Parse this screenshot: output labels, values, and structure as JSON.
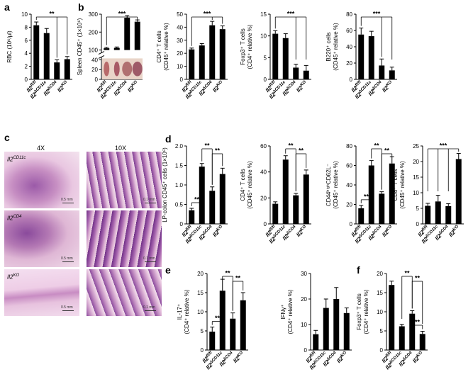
{
  "panel_labels": {
    "a": "a",
    "b": "b",
    "c": "c",
    "d": "d",
    "e": "e",
    "f": "f"
  },
  "histology": {
    "col_headers": [
      "4X",
      "10X"
    ],
    "rows": [
      {
        "label_base": "Il2",
        "label_sup": "CD11c",
        "scale_4x": "0.5 mm",
        "scale_10x": "0.1 mm"
      },
      {
        "label_base": "Il2",
        "label_sup": "CD4",
        "scale_4x": "0.5 mm",
        "scale_10x": "0.1 mm"
      },
      {
        "label_base": "Il2",
        "label_sup": "KO",
        "scale_4x": "0.5 mm",
        "scale_10x": "0.1 mm"
      }
    ],
    "colors": {
      "stain_pink": "#e8b8d6",
      "stain_purple": "#9a5aa6",
      "tissue_dark": "#6b2f7e"
    }
  },
  "spleen_photo": {
    "colors": [
      "#b86a6a",
      "#a85a66",
      "#b07070",
      "#9e5a68"
    ]
  },
  "chart_data": [
    {
      "id": "a",
      "type": "bar",
      "categories": [
        "Il2fl/fl",
        "Il2ΔCD11c",
        "Il2ΔCD4",
        "Il2KO"
      ],
      "cat_base": [
        "Il2",
        "Il2",
        "Il2",
        "Il2"
      ],
      "cat_sup": [
        "fl/fl",
        "ΔCD11c",
        "ΔCD4",
        "KO"
      ],
      "values": [
        8.3,
        7.1,
        2.6,
        3.1
      ],
      "errors": [
        0.5,
        0.7,
        0.4,
        0.4
      ],
      "ylabel": "RBC (10⁶/μl)",
      "ylim": [
        0,
        10
      ],
      "yticks": [
        "0",
        "2",
        "4",
        "6",
        "8",
        "10"
      ],
      "sig": [
        {
          "from": 0,
          "to": [
            2,
            3
          ],
          "label": "**"
        }
      ]
    },
    {
      "id": "b1",
      "type": "bar",
      "broken_axis": true,
      "categories": [
        "Il2fl/fl",
        "Il2ΔCD11c",
        "Il2ΔCD4",
        "Il2KO"
      ],
      "cat_base": [
        "Il2",
        "Il2",
        "Il2",
        "Il2"
      ],
      "cat_sup": [
        "fl/fl",
        "ΔCD11c",
        "ΔCD4",
        "KO"
      ],
      "values": [
        110,
        112,
        280,
        258
      ],
      "errors": [
        5,
        5,
        12,
        10
      ],
      "ylabel": "Spleen CD45⁺ (1×10⁶)",
      "yticks": [
        "0",
        "20",
        "40",
        "100",
        "200",
        "300"
      ],
      "sig": [
        {
          "from": 0,
          "to": [
            2,
            3
          ],
          "label": "***"
        }
      ]
    },
    {
      "id": "b2",
      "type": "bar",
      "categories": [
        "Il2fl/fl",
        "Il2ΔCD11c",
        "Il2ΔCD4",
        "Il2KO"
      ],
      "cat_base": [
        "Il2",
        "Il2",
        "Il2",
        "Il2"
      ],
      "cat_sup": [
        "fl/fl",
        "ΔCD11c",
        "ΔCD4",
        "KO"
      ],
      "values": [
        23,
        26,
        41.5,
        38.5
      ],
      "errors": [
        1,
        1.5,
        3,
        2.5
      ],
      "ylabel": "CD4⁺ T cells (CD45⁺ relative %)",
      "ylim": [
        0,
        50
      ],
      "yticks": [
        "0",
        "10",
        "20",
        "30",
        "40",
        "50"
      ],
      "sig": [
        {
          "from": 0,
          "to": [
            2,
            3
          ],
          "label": "***"
        }
      ]
    },
    {
      "id": "b3",
      "type": "bar",
      "categories": [
        "Il2fl/fl",
        "Il2ΔCD11c",
        "Il2ΔCD4",
        "Il2KO"
      ],
      "cat_base": [
        "Il2",
        "Il2",
        "Il2",
        "Il2"
      ],
      "cat_sup": [
        "fl/fl",
        "ΔCD11c",
        "ΔCD4",
        "KO"
      ],
      "values": [
        10.5,
        9.5,
        2.7,
        2.0
      ],
      "errors": [
        0.7,
        1.0,
        0.8,
        1.2
      ],
      "ylabel": "Foxp3⁺ T cells (CD4⁺ relative %)",
      "ylim": [
        0,
        15
      ],
      "yticks": [
        "0",
        "5",
        "10",
        "15"
      ],
      "sig": [
        {
          "from": 0,
          "to": [
            2,
            3
          ],
          "label": "***"
        }
      ]
    },
    {
      "id": "b4",
      "type": "bar",
      "categories": [
        "Il2fl/fl",
        "Il2ΔCD11c",
        "Il2ΔCD4",
        "Il2KO"
      ],
      "cat_base": [
        "Il2",
        "Il2",
        "Il2",
        "Il2"
      ],
      "cat_sup": [
        "fl/fl",
        "ΔCD11c",
        "ΔCD4",
        "KO"
      ],
      "values": [
        55,
        53,
        17,
        11
      ],
      "errors": [
        8,
        6,
        8,
        4
      ],
      "ylabel": "B220⁺ cells (CD45⁺ relative %)",
      "ylim": [
        0,
        80
      ],
      "yticks": [
        "0",
        "20",
        "40",
        "60",
        "80"
      ],
      "sig": [
        {
          "from": 0,
          "to": [
            2,
            3
          ],
          "label": "***"
        }
      ]
    },
    {
      "id": "d1",
      "type": "bar",
      "categories": [
        "Il2fl/fl",
        "Il2ΔCD11c",
        "Il2ΔCD4",
        "Il2KO"
      ],
      "cat_base": [
        "Il2",
        "Il2",
        "Il2",
        "Il2"
      ],
      "cat_sup": [
        "fl/fl",
        "ΔCD11c",
        "ΔCD4",
        "KO"
      ],
      "values": [
        0.35,
        1.47,
        0.85,
        1.28
      ],
      "errors": [
        0.05,
        0.08,
        0.1,
        0.15
      ],
      "ylabel": "LP-colon CD45⁺ cells (1×10⁶)",
      "ylim": [
        0,
        2.0
      ],
      "yticks": [
        "0",
        "0.5",
        "1.0",
        "1.5",
        "2.0"
      ],
      "sig": [
        {
          "from": 0,
          "to": [
            1
          ],
          "label": "**",
          "low": true
        },
        {
          "from": 1,
          "to": [
            2
          ],
          "label": "**"
        },
        {
          "from": 2,
          "to": [
            3
          ],
          "label": "**"
        }
      ]
    },
    {
      "id": "d2",
      "type": "bar",
      "categories": [
        "Il2fl/fl",
        "Il2ΔCD11c",
        "Il2ΔCD4",
        "Il2KO"
      ],
      "cat_base": [
        "Il2",
        "Il2",
        "Il2",
        "Il2"
      ],
      "cat_sup": [
        "fl/fl",
        "ΔCD11c",
        "ΔCD4",
        "KO"
      ],
      "values": [
        15.5,
        49.5,
        22,
        38
      ],
      "errors": [
        1.5,
        3,
        1.5,
        3.5
      ],
      "ylabel": "CD4⁺ T cells (CD45⁺ relative %)",
      "ylim": [
        0,
        60
      ],
      "yticks": [
        "0",
        "20",
        "40",
        "60"
      ],
      "sig": [
        {
          "from": 1,
          "to": [
            2
          ],
          "label": "**"
        },
        {
          "from": 2,
          "to": [
            3
          ],
          "label": "**"
        }
      ]
    },
    {
      "id": "d3",
      "type": "bar",
      "categories": [
        "Il2fl/fl",
        "Il2ΔCD11c",
        "Il2ΔCD4",
        "Il2KO"
      ],
      "cat_base": [
        "Il2",
        "Il2",
        "Il2",
        "Il2"
      ],
      "cat_sup": [
        "fl/fl",
        "ΔCD11c",
        "ΔCD4",
        "KO"
      ],
      "values": [
        16,
        60,
        31,
        62
      ],
      "errors": [
        3,
        5,
        2,
        7
      ],
      "ylabel": "CD44ʰⁱᵍʰCD62L⁻ (CD45⁺ relative %)",
      "ylim": [
        0,
        80
      ],
      "yticks": [
        "0",
        "20",
        "40",
        "60",
        "80"
      ],
      "sig": [
        {
          "from": 0,
          "to": [
            1
          ],
          "label": "**",
          "low": true
        },
        {
          "from": 1,
          "to": [
            2
          ],
          "label": "**"
        },
        {
          "from": 2,
          "to": [
            3
          ],
          "label": "**"
        }
      ]
    },
    {
      "id": "d4",
      "type": "bar",
      "categories": [
        "Il2fl/fl",
        "Il2ΔCD11c",
        "Il2ΔCD4",
        "Il2KO"
      ],
      "cat_base": [
        "Il2",
        "Il2",
        "Il2",
        "Il2"
      ],
      "cat_sup": [
        "fl/fl",
        "ΔCD11c",
        "ΔCD4",
        "KO"
      ],
      "values": [
        5.8,
        7.2,
        5.7,
        20.8
      ],
      "errors": [
        0.8,
        2.0,
        0.8,
        1.8
      ],
      "ylabel": "CD8⁺ T cells (CD45⁺ relative %)",
      "ylim": [
        0,
        25
      ],
      "yticks": [
        "0",
        "5",
        "10",
        "15",
        "20",
        "25"
      ],
      "sig": [
        {
          "from": 3,
          "to": [
            0,
            1,
            2
          ],
          "label": "***"
        }
      ]
    },
    {
      "id": "e1",
      "type": "bar",
      "categories": [
        "Il2fl/fl",
        "Il2ΔCD11c",
        "Il2ΔCD4",
        "Il2KO"
      ],
      "cat_base": [
        "Il2",
        "Il2",
        "Il2",
        "Il2"
      ],
      "cat_sup": [
        "fl/fl",
        "ΔCD11c",
        "ΔCD4",
        "KO"
      ],
      "values": [
        4.8,
        15.5,
        8.2,
        13
      ],
      "errors": [
        1.2,
        3.0,
        1.5,
        2.0
      ],
      "ylabel": "IL-17⁺ (CD4⁺ relative %)",
      "ylim": [
        0,
        20
      ],
      "yticks": [
        "0",
        "5",
        "10",
        "15",
        "20"
      ],
      "sig": [
        {
          "from": 0,
          "to": [
            1
          ],
          "label": "**",
          "low": true
        },
        {
          "from": 1,
          "to": [
            2
          ],
          "label": "**"
        },
        {
          "from": 2,
          "to": [
            3
          ],
          "label": "**"
        }
      ]
    },
    {
      "id": "e2",
      "type": "bar",
      "categories": [
        "Il2fl/fl",
        "Il2ΔCD11c",
        "Il2ΔCD4",
        "Il2KO"
      ],
      "cat_base": [
        "Il2",
        "Il2",
        "Il2",
        "Il2"
      ],
      "cat_sup": [
        "fl/fl",
        "ΔCD11c",
        "ΔCD4",
        "KO"
      ],
      "values": [
        6.2,
        16.5,
        20,
        14.5
      ],
      "errors": [
        1.5,
        3.5,
        4.5,
        2.0
      ],
      "ylabel": "IFNγ⁺ (CD4⁺ relative %)",
      "ylim": [
        0,
        30
      ],
      "yticks": [
        "0",
        "10",
        "20",
        "30"
      ],
      "sig": []
    },
    {
      "id": "f",
      "type": "bar",
      "categories": [
        "Il2fl/fl",
        "Il2ΔCD11c",
        "Il2ΔCD4",
        "Il2KO"
      ],
      "cat_base": [
        "Il2",
        "Il2",
        "Il2",
        "Il2"
      ],
      "cat_sup": [
        "fl/fl",
        "ΔCD11c",
        "ΔCD4",
        "KO"
      ],
      "values": [
        17,
        6.2,
        9.5,
        4.2
      ],
      "errors": [
        1.0,
        0.5,
        0.8,
        0.7
      ],
      "ylabel": "Foxp3⁺ T cells (CD4⁺ relative %)",
      "ylim": [
        0,
        20
      ],
      "yticks": [
        "0",
        "5",
        "10",
        "15",
        "20"
      ],
      "sig": [
        {
          "from": 1,
          "to": [
            2
          ],
          "label": "**"
        },
        {
          "from": 2,
          "to": [
            3
          ],
          "label": "**"
        },
        {
          "from": 2,
          "to": [
            3
          ],
          "label": "**",
          "low": true
        }
      ]
    }
  ]
}
